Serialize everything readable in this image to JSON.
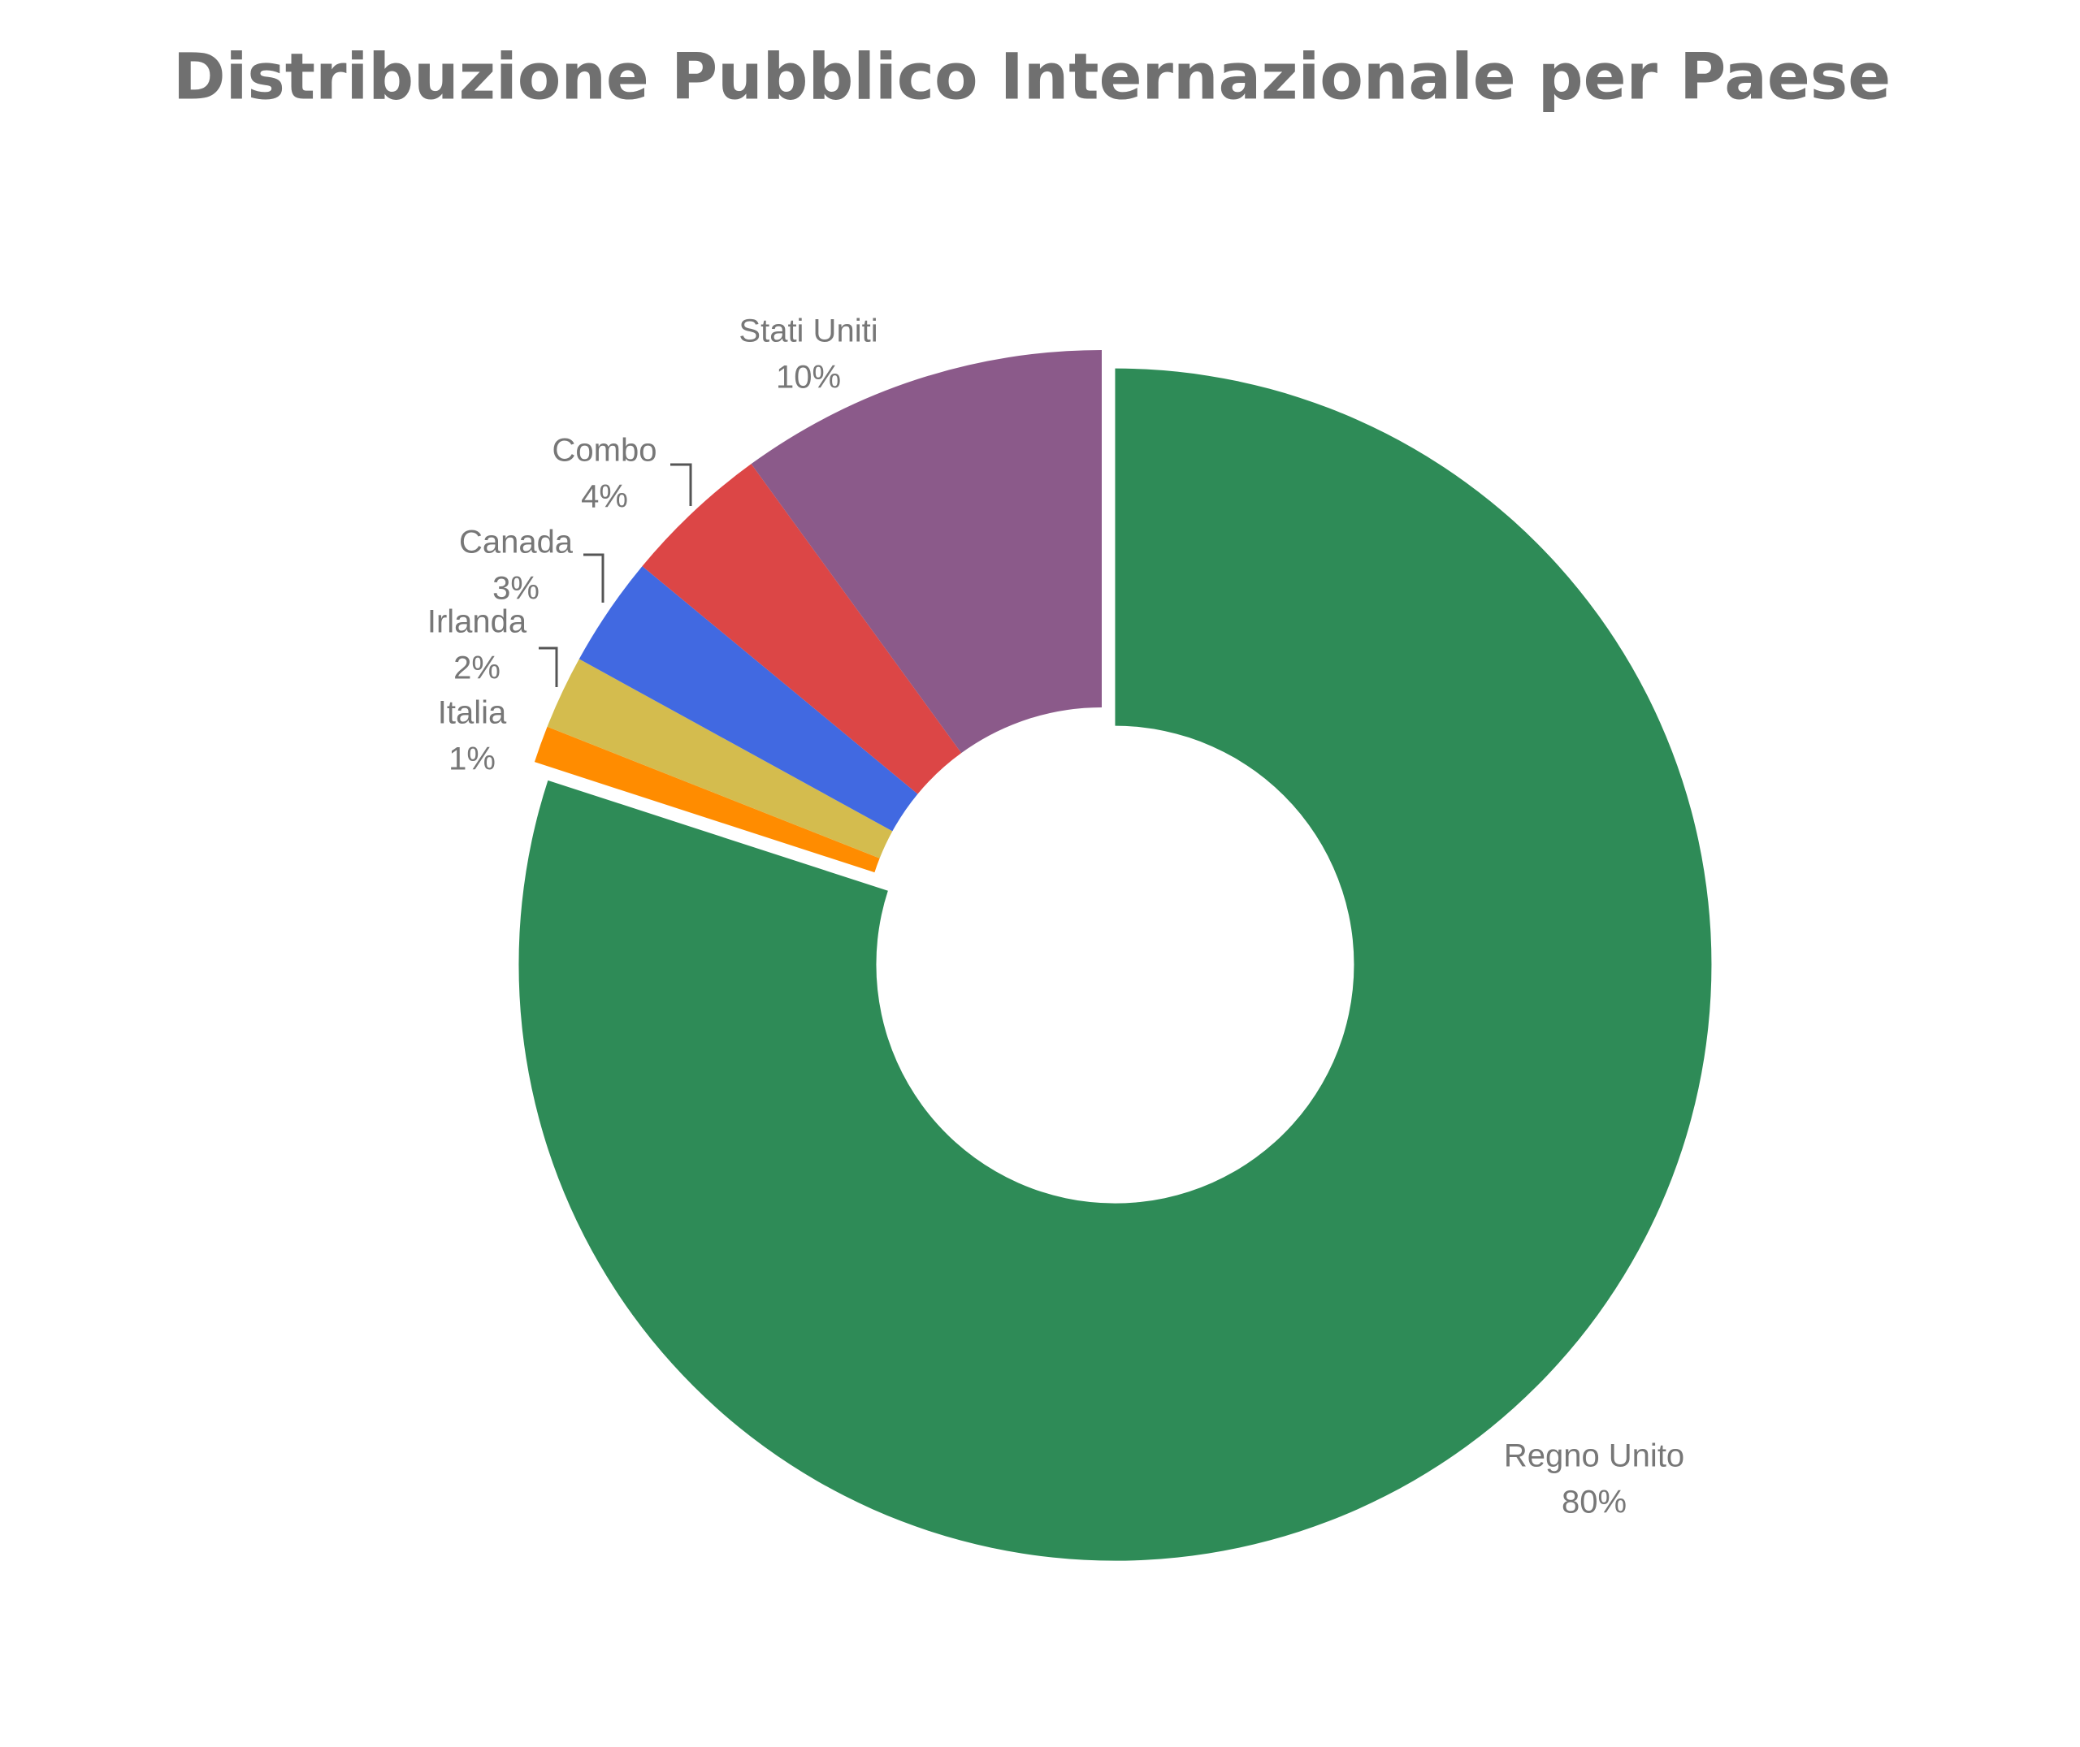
{
  "chart_data": {
    "type": "donut",
    "title": "Distribuzione Pubblico Internazionale per Paese",
    "categories": [
      "Regno Unito",
      "Italia",
      "Irlanda",
      "Canada",
      "Combo",
      "Stati Uniti"
    ],
    "values": [
      80,
      1,
      2,
      3,
      4,
      10
    ],
    "value_labels": [
      "80%",
      "1%",
      "2%",
      "3%",
      "4%",
      "10%"
    ],
    "colors": [
      "#2e8b57",
      "#ff8c00",
      "#d4bc4e",
      "#4169e1",
      "#dc4646",
      "#8b5a8a"
    ],
    "exploded": [
      "Regno Unito"
    ]
  }
}
